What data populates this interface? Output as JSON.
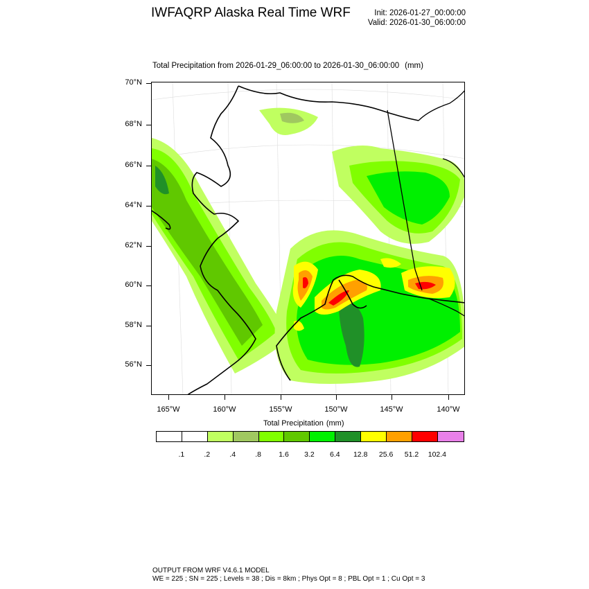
{
  "title": "IWFAQRP Alaska Real Time WRF",
  "init": "Init: 2026-01-27_00:00:00",
  "valid": "Valid: 2026-01-30_06:00:00",
  "subtitle": "Total Precipitation from 2026-01-29_06:00:00 to 2026-01-30_06:00:00",
  "subtitle_units": "(mm)",
  "lat_labels": [
    "70°N",
    "68°N",
    "66°N",
    "64°N",
    "62°N",
    "60°N",
    "58°N",
    "56°N"
  ],
  "lon_labels": [
    "165°W",
    "160°W",
    "155°W",
    "150°W",
    "145°W",
    "140°W"
  ],
  "colorbar": {
    "title": "Total Precipitation",
    "units": "(mm)",
    "labels": [
      ".1",
      ".2",
      ".4",
      ".8",
      "1.6",
      "3.2",
      "6.4",
      "12.8",
      "25.6",
      "51.2",
      "102.4"
    ],
    "colors": [
      "#ffffff",
      "#ffffff",
      "#c0ff60",
      "#a0c860",
      "#80ff00",
      "#60c800",
      "#00f000",
      "#209028",
      "#ffff00",
      "#ffa000",
      "#ff0000",
      "#e880e8"
    ]
  },
  "footer_line1": "OUTPUT FROM WRF V4.6.1 MODEL",
  "footer_line2": "WE = 225 ; SN = 225 ; Levels = 38 ; Dis = 8km ; Phys Opt = 8 ; PBL Opt = 1 ; Cu Opt = 3"
}
